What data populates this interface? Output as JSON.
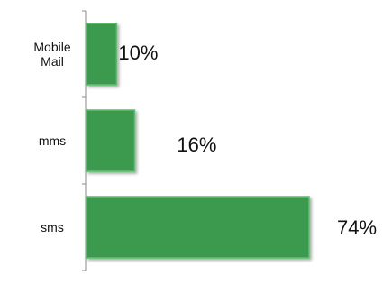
{
  "chart_data": {
    "type": "bar",
    "orientation": "horizontal",
    "categories": [
      "Mobile Mail",
      "mms",
      "sms"
    ],
    "category_lines": [
      [
        "Mobile",
        "Mail"
      ],
      [
        "mms"
      ],
      [
        "sms"
      ]
    ],
    "values": [
      10,
      16,
      74
    ],
    "value_labels": [
      "10%",
      "16%",
      "74%"
    ],
    "unit": "%",
    "xlim": [
      0,
      74
    ],
    "title": "",
    "xlabel": "",
    "ylabel": "",
    "grid": false,
    "legend": "none",
    "bar_color": "#3a9a4e",
    "bar_highlight": "#5cbf6e"
  }
}
